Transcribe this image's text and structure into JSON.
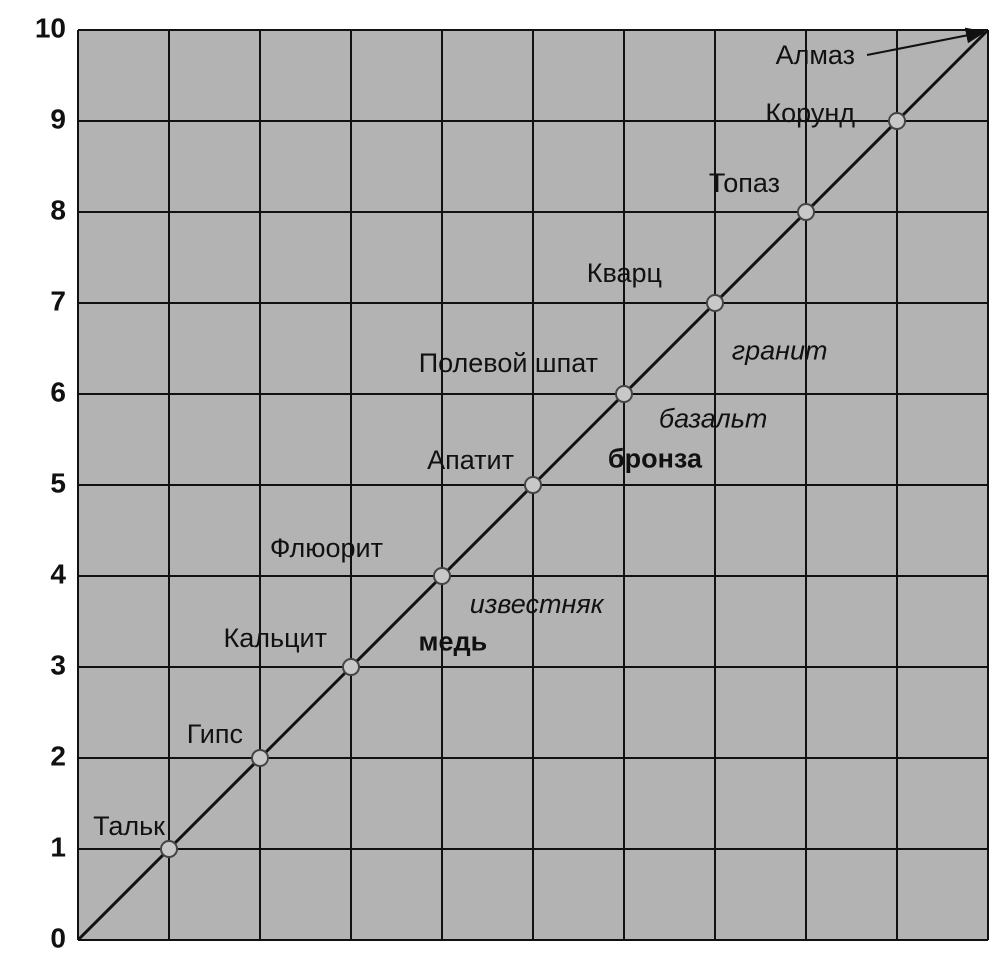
{
  "chart_data": {
    "type": "line",
    "x": [
      0,
      1,
      2,
      3,
      4,
      5,
      6,
      7,
      8,
      9,
      10
    ],
    "values": [
      0,
      1,
      2,
      3,
      4,
      5,
      6,
      7,
      8,
      9,
      10
    ],
    "point_labels": [
      null,
      "Тальк",
      "Гипс",
      "Кальцит",
      "Флюорит",
      "Апатит",
      "Полевой шпат",
      "Кварц",
      "Топаз",
      "Корунд",
      "Алмаз"
    ],
    "color": "#111111",
    "background": "#b3b3b3",
    "xlim": [
      0,
      10
    ],
    "ylim": [
      0,
      10
    ],
    "xticks": [
      0,
      1,
      2,
      3,
      4,
      5,
      6,
      7,
      8,
      9,
      10
    ],
    "yticks": [
      0,
      1,
      2,
      3,
      4,
      5,
      6,
      7,
      8,
      9,
      10
    ],
    "grid": true,
    "annotations": [
      {
        "text": "гранит",
        "x": 7.71,
        "y": 6.46,
        "style": "italic"
      },
      {
        "text": "базальт",
        "x": 6.98,
        "y": 5.71,
        "style": "italic"
      },
      {
        "text": "бронза",
        "x": 6.34,
        "y": 5.27,
        "style": "bold"
      },
      {
        "text": "известняк",
        "x": 5.04,
        "y": 3.67,
        "style": "italic"
      },
      {
        "text": "медь",
        "x": 4.12,
        "y": 3.26,
        "style": "bold"
      }
    ]
  }
}
